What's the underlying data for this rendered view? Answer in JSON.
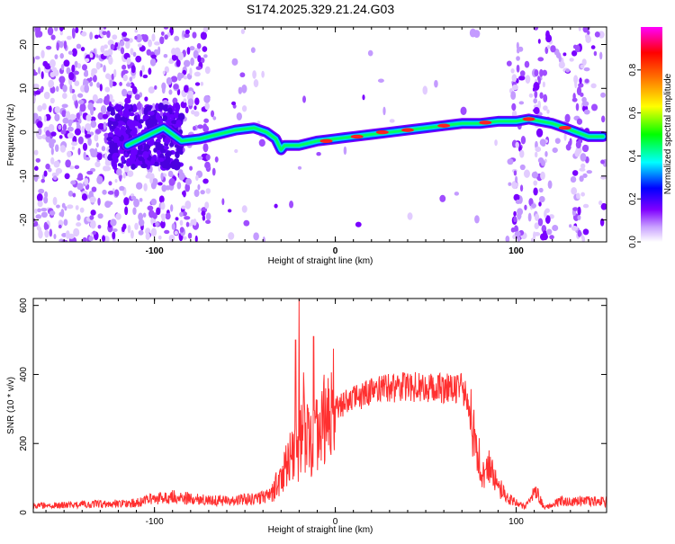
{
  "chart_data": [
    {
      "type": "heatmap",
      "title": "S174.2025.329.21.24.G03",
      "xlabel": "Height of straight line (km)",
      "ylabel": "Frequency (Hz)",
      "xlim": [
        -167,
        150
      ],
      "ylim": [
        -25,
        24
      ],
      "xticks": [
        -100,
        0,
        100
      ],
      "xtick_labels": [
        "-100",
        "0",
        "100"
      ],
      "yticks": [
        -20,
        -10,
        0,
        10,
        20
      ],
      "ytick_labels": [
        "-20",
        "-10",
        "0",
        "10",
        "20"
      ],
      "colorbar": {
        "label": "Normalized spectral amplitude",
        "range": [
          0,
          1
        ],
        "ticks": [
          0.0,
          0.2,
          0.4,
          0.6,
          0.8
        ],
        "tick_labels": [
          "0.0",
          "0.2",
          "0.4",
          "0.6",
          "0.8"
        ],
        "colors": [
          "#ffffff",
          "#8000ff",
          "#0000ff",
          "#00ffff",
          "#00ff00",
          "#ffff00",
          "#ff8000",
          "#ff0000",
          "#ff00ff"
        ]
      },
      "trace": {
        "description_points_km_hz": [
          [
            -115,
            -3
          ],
          [
            -105,
            -1
          ],
          [
            -95,
            1
          ],
          [
            -85,
            -2
          ],
          [
            -75,
            -1.5
          ],
          [
            -65,
            -0.5
          ],
          [
            -55,
            0.5
          ],
          [
            -45,
            1
          ],
          [
            -38,
            0
          ],
          [
            -33,
            -1.5
          ],
          [
            -30,
            -4
          ],
          [
            -28,
            -3
          ],
          [
            -20,
            -3
          ],
          [
            -10,
            -2
          ],
          [
            0,
            -1.5
          ],
          [
            10,
            -1
          ],
          [
            20,
            -0.5
          ],
          [
            30,
            0
          ],
          [
            40,
            0.5
          ],
          [
            50,
            1
          ],
          [
            60,
            1.5
          ],
          [
            70,
            2
          ],
          [
            80,
            2
          ],
          [
            90,
            2.5
          ],
          [
            100,
            2.5
          ],
          [
            107,
            3
          ],
          [
            120,
            2
          ],
          [
            127,
            1
          ],
          [
            140,
            -1
          ],
          [
            148,
            -1
          ]
        ],
        "high_amplitude_points_km_hz": [
          [
            -5,
            -2
          ],
          [
            12,
            -1
          ],
          [
            26,
            0
          ],
          [
            40,
            0.5
          ],
          [
            60,
            1.5
          ],
          [
            83,
            2.2
          ],
          [
            107,
            3
          ],
          [
            127,
            1
          ]
        ]
      }
    },
    {
      "type": "line",
      "title": "",
      "xlabel": "Height of straight line (km)",
      "ylabel": "SNR (10 * v/v)",
      "xlim": [
        -167,
        150
      ],
      "ylim": [
        0,
        620
      ],
      "xticks": [
        -100,
        0,
        100
      ],
      "xtick_labels": [
        "-100",
        "0",
        "100"
      ],
      "yticks": [
        0,
        200,
        400,
        600
      ],
      "ytick_labels": [
        "0",
        "200",
        "400",
        "600"
      ],
      "series": [
        {
          "name": "SNR",
          "color": "#ff3030",
          "x": [
            -167,
            -150,
            -130,
            -110,
            -100,
            -90,
            -80,
            -70,
            -60,
            -50,
            -40,
            -35,
            -30,
            -25,
            -20,
            -18,
            -15,
            -12,
            -10,
            -5,
            0,
            5,
            10,
            20,
            30,
            40,
            50,
            60,
            70,
            73,
            75,
            78,
            82,
            85,
            90,
            95,
            100,
            105,
            110,
            112,
            115,
            120,
            125,
            130,
            140,
            150
          ],
          "y": [
            20,
            22,
            25,
            28,
            40,
            45,
            40,
            35,
            35,
            38,
            45,
            60,
            110,
            150,
            180,
            280,
            200,
            220,
            230,
            270,
            300,
            315,
            330,
            350,
            360,
            365,
            362,
            360,
            360,
            330,
            250,
            190,
            100,
            130,
            80,
            40,
            30,
            15,
            55,
            60,
            15,
            20,
            35,
            30,
            35,
            30
          ]
        }
      ],
      "spikes": [
        [
          -20,
          620
        ],
        [
          -12,
          510
        ],
        [
          -1,
          475
        ],
        [
          -22,
          500
        ]
      ]
    }
  ]
}
